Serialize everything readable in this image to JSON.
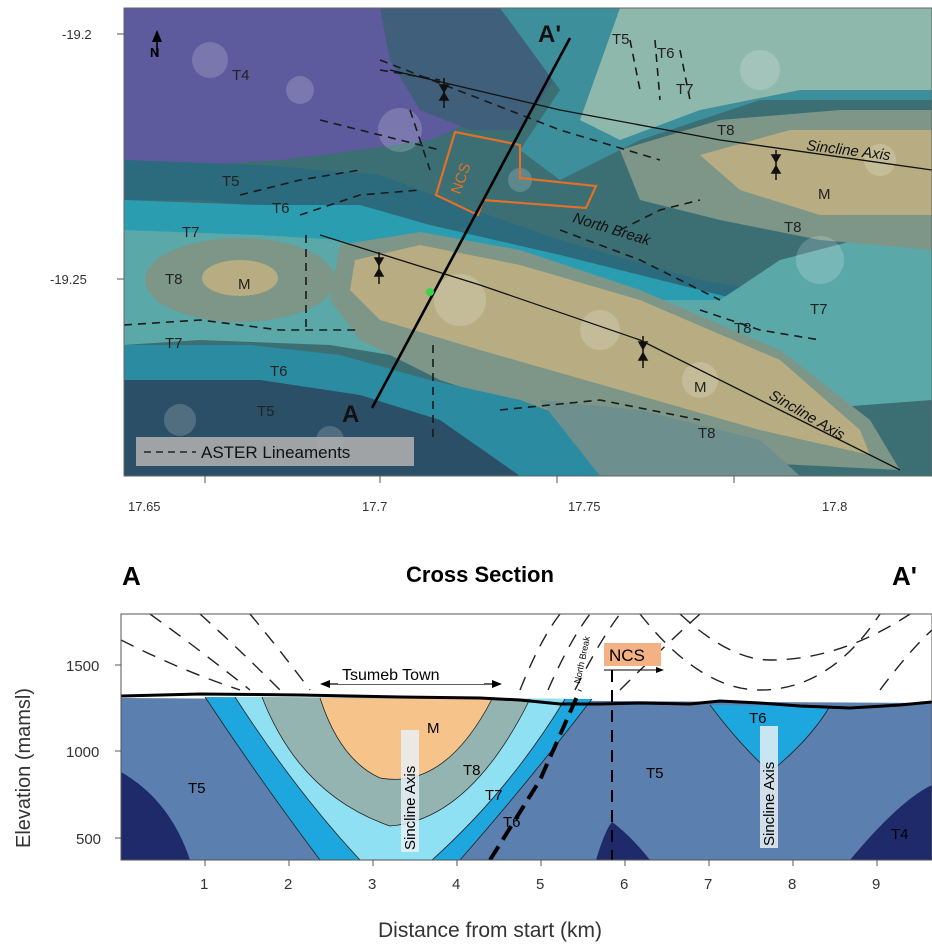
{
  "map": {
    "unit_labels": [
      "T4",
      "T5",
      "T6",
      "T7",
      "T8",
      "M",
      "T5",
      "T6",
      "T7",
      "T8",
      "M",
      "T8",
      "T7",
      "T8",
      "M",
      "T8",
      "T7",
      "T6",
      "T5",
      "T7",
      "T8",
      "T6",
      "T5"
    ],
    "unit_label_names": [
      "t4",
      "t5-left",
      "t6-left",
      "t7-left",
      "t8-left",
      "m-left",
      "t5-top",
      "t6-top",
      "t7-top",
      "t8-top",
      "m-right",
      "t8-right",
      "t7-right",
      "t8-mid",
      "m-mid",
      "t8-bottom",
      "t7-bottom-left",
      "t6-bottom",
      "t5-bottom",
      "t7-top-right",
      "t8-top-right",
      "t6-top-right",
      "t5-top-right"
    ],
    "feature_labels": {
      "ncs": "NCS",
      "north_break": "North Break",
      "syncline_axis_upper": "Sincline Axis",
      "syncline_axis_lower": "Sincline Axis",
      "section_start": "A",
      "section_end": "A'",
      "north_arrow": "N"
    },
    "legend": {
      "label": "ASTER Lineaments"
    },
    "x_ticks": [
      "17.65",
      "17.7",
      "17.75",
      "17.8"
    ],
    "y_ticks": [
      "-19.2",
      "-19.25"
    ],
    "colors": {
      "T4": "#5d5a9e",
      "T5": "#2b6b7d",
      "T6": "#2a9db1",
      "T7": "#5ba8a8",
      "T8": "#7d9688",
      "M": "#b8ad82",
      "ncs": "#e0702a"
    }
  },
  "section": {
    "title": "Cross Section",
    "start_label": "A",
    "end_label": "A'",
    "xlabel": "Distance from start (km)",
    "ylabel": "Elevation (mamsl)",
    "x_ticks": [
      "1",
      "2",
      "3",
      "4",
      "5",
      "6",
      "7",
      "8",
      "9"
    ],
    "y_ticks": [
      "500",
      "1000",
      "1500"
    ],
    "annotations": {
      "town": "Tsumeb Town",
      "ncs": "NCS",
      "north_break": "North Break",
      "syncline_axis_1": "Sincline Axis",
      "syncline_axis_2": "Sincline Axis"
    },
    "unit_labels": {
      "t5_left": "T5",
      "m": "M",
      "t8": "T8",
      "t7": "T7",
      "t6": "T6",
      "t5_mid": "T5",
      "t6_right": "T6",
      "t4": "T4"
    },
    "colors": {
      "T4": "#1f2a6b",
      "T5": "#5b7fae",
      "T6": "#1ea6de",
      "T7": "#8fe0f2",
      "T8": "#93b4b0",
      "M": "#f6c38a",
      "ncs_box": "#f4b183"
    }
  }
}
